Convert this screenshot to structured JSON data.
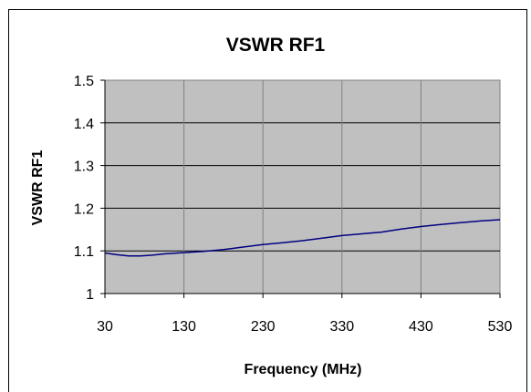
{
  "chart_data": {
    "type": "line",
    "title": "VSWR RF1",
    "xlabel": "Frequency (MHz)",
    "ylabel": "VSWR RF1",
    "xlim": [
      30,
      530
    ],
    "ylim": [
      1,
      1.5
    ],
    "x_ticks": [
      "30",
      "130",
      "230",
      "330",
      "430",
      "530"
    ],
    "y_ticks": [
      "1",
      "1.1",
      "1.2",
      "1.3",
      "1.4",
      "1.5"
    ],
    "grid": true,
    "legend": "none",
    "plot_background": "#c0c0c0",
    "series": [
      {
        "color": "#000080",
        "x": [
          30,
          45,
          60,
          75,
          90,
          105,
          130,
          155,
          180,
          205,
          230,
          255,
          280,
          305,
          330,
          355,
          380,
          405,
          430,
          455,
          480,
          505,
          530
        ],
        "y": [
          1.095,
          1.091,
          1.088,
          1.088,
          1.09,
          1.093,
          1.096,
          1.099,
          1.103,
          1.109,
          1.115,
          1.119,
          1.124,
          1.13,
          1.136,
          1.14,
          1.144,
          1.151,
          1.157,
          1.162,
          1.166,
          1.17,
          1.173
        ]
      }
    ]
  }
}
